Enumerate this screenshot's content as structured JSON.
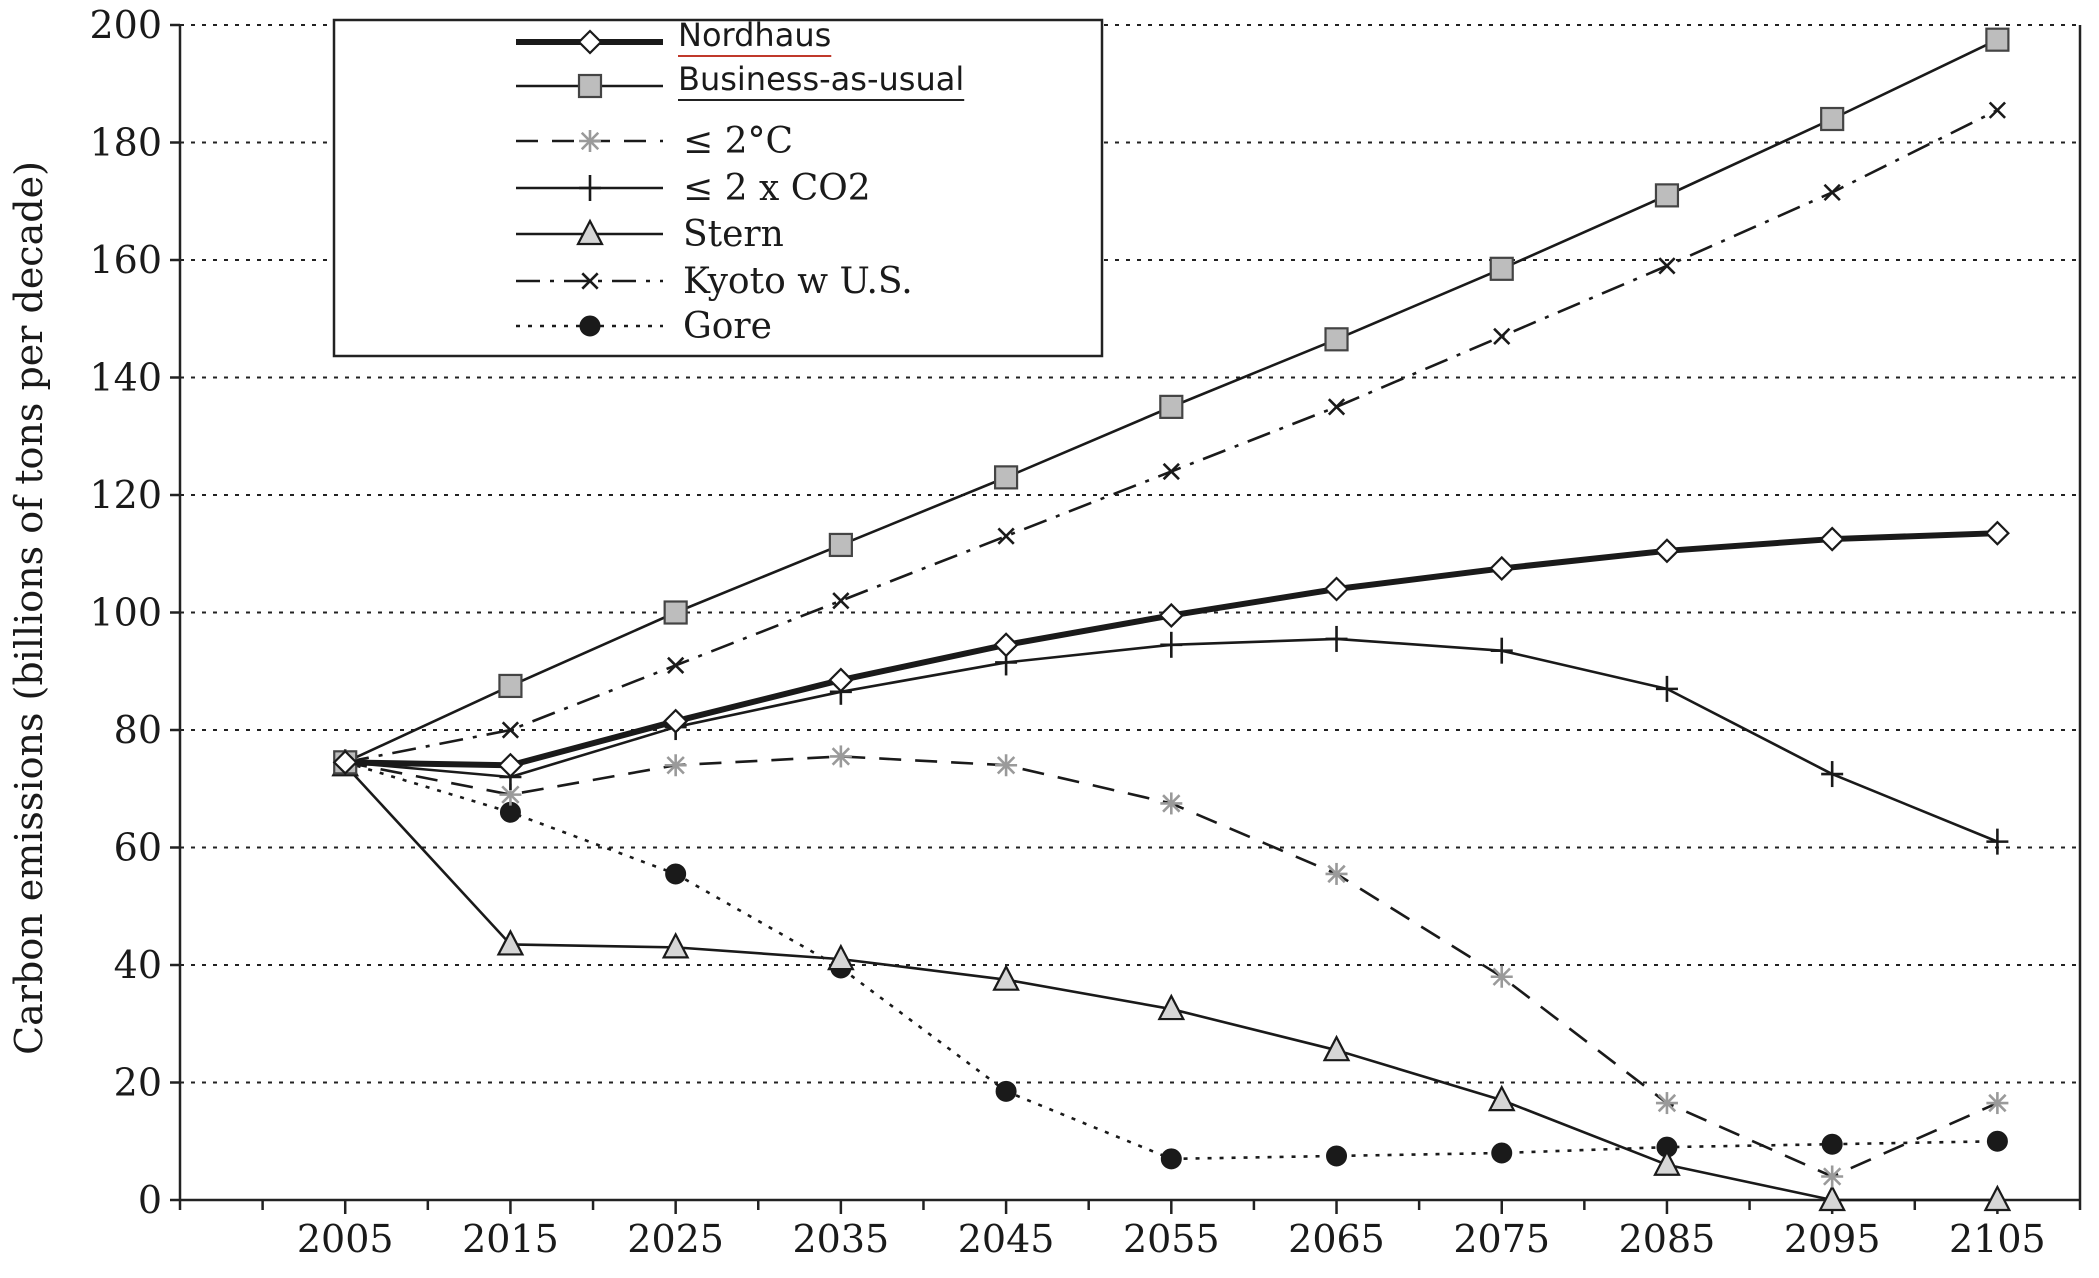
{
  "chart_data": {
    "type": "line",
    "title": "",
    "xlabel": "",
    "ylabel": "Carbon emissions (billions of tons per decade)",
    "x": [
      2005,
      2015,
      2025,
      2035,
      2045,
      2055,
      2065,
      2075,
      2085,
      2095,
      2105
    ],
    "xlim": [
      1995,
      2110
    ],
    "ylim": [
      0,
      200
    ],
    "yticks": [
      0,
      20,
      40,
      60,
      80,
      100,
      120,
      140,
      160,
      180,
      200
    ],
    "grid": "horizontal dotted",
    "legend": "top-left",
    "series": [
      {
        "name": "Nordhaus",
        "marker": "diamond",
        "line": "solid-bold",
        "color": "#1a1a1a",
        "markerFill": "#ffffff",
        "values": [
          74.5,
          74,
          81.5,
          88.5,
          94.5,
          99.5,
          104,
          107.5,
          110.5,
          112.5,
          113.5
        ]
      },
      {
        "name": "Business-as-usual",
        "marker": "square",
        "line": "solid",
        "color": "#1a1a1a",
        "markerFill": "#bdbdbd",
        "values": [
          74.5,
          87.5,
          100,
          111.5,
          123,
          135,
          146.5,
          158.5,
          171,
          184,
          197.5
        ]
      },
      {
        "name": "≤ 2°C",
        "marker": "asterisk",
        "line": "dashed",
        "color": "#1a1a1a",
        "markerColor": "#9a9a9a",
        "values": [
          74.5,
          69,
          74,
          75.5,
          74,
          67.5,
          55.5,
          38,
          16.5,
          4,
          16.5
        ]
      },
      {
        "name": "≤ 2 x CO2",
        "marker": "plus",
        "line": "solid",
        "color": "#1a1a1a",
        "values": [
          74.5,
          72,
          80.5,
          86.5,
          91.5,
          94.5,
          95.5,
          93.5,
          87,
          72.5,
          61
        ]
      },
      {
        "name": "Stern",
        "marker": "triangle",
        "line": "solid",
        "color": "#1a1a1a",
        "markerFill": "#d6d6d6",
        "values": [
          74,
          43.5,
          43,
          41,
          37.5,
          32.5,
          25.5,
          17,
          6,
          0,
          0
        ]
      },
      {
        "name": "Kyoto w U.S.",
        "marker": "x",
        "line": "dashdot",
        "color": "#1a1a1a",
        "values": [
          74.5,
          80,
          91,
          102,
          113,
          124,
          135,
          147,
          159,
          171.5,
          185.5
        ]
      },
      {
        "name": "Gore",
        "marker": "circle",
        "line": "dotted",
        "color": "#1a1a1a",
        "markerFill": "#1a1a1a",
        "values": [
          74.5,
          66,
          55.5,
          39.5,
          18.5,
          7,
          7.5,
          8,
          9,
          9.5,
          10
        ]
      }
    ]
  }
}
